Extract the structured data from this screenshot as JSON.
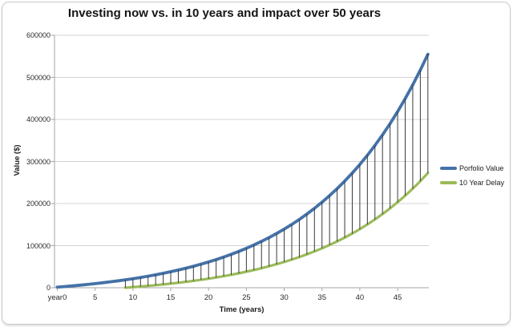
{
  "chart_data": {
    "type": "line",
    "title": "Investing now vs. in 10 years and impact over 50 years",
    "xlabel": "Time (years)",
    "ylabel": "Value ($)",
    "xlim": [
      0,
      49
    ],
    "ylim": [
      0,
      600000
    ],
    "grid": "horizontal",
    "legend_position": "right",
    "x_tick_labels": [
      "year0",
      "5",
      "10",
      "15",
      "20",
      "25",
      "30",
      "35",
      "40",
      "45"
    ],
    "x_tick_years": [
      0,
      5,
      10,
      15,
      20,
      25,
      30,
      35,
      40,
      45
    ],
    "y_ticks": [
      0,
      100000,
      200000,
      300000,
      400000,
      500000,
      600000
    ],
    "y_tick_labels": [
      "0",
      "100000",
      "200000",
      "300000",
      "400000",
      "500000",
      "600000"
    ],
    "series": [
      {
        "name": "Porfolio Value",
        "color": "#4472a8",
        "start_year": 0,
        "values": [
          1400,
          2800,
          4400,
          6100,
          7900,
          9800,
          11800,
          14000,
          16300,
          18900,
          21500,
          24400,
          27500,
          30800,
          34300,
          38100,
          42100,
          46400,
          51000,
          56000,
          61200,
          66900,
          72900,
          79400,
          86300,
          93700,
          101700,
          110200,
          119200,
          128900,
          139300,
          150400,
          162300,
          175100,
          188700,
          203300,
          218900,
          235500,
          253400,
          272500,
          292900,
          314800,
          338200,
          363300,
          390000,
          418700,
          449400,
          482200,
          517300,
          554900
        ]
      },
      {
        "name": "10 Year Delay",
        "color": "#9bbb59",
        "start_year": 9,
        "values": [
          0,
          1400,
          2800,
          4400,
          6100,
          7900,
          9800,
          11800,
          14000,
          16300,
          18900,
          21500,
          24400,
          27500,
          30800,
          34300,
          38100,
          42100,
          46400,
          51000,
          56000,
          61200,
          66900,
          72900,
          79400,
          86300,
          93700,
          101700,
          110200,
          119200,
          128900,
          139300,
          150400,
          162300,
          175100,
          188700,
          203300,
          218900,
          235500,
          253400,
          272500
        ]
      }
    ],
    "drop_lines": {
      "description": "vertical black lines between the two curves at every year, showing the gap caused by delaying",
      "from_year": 9,
      "to_year": 49,
      "color": "#3a3a3a"
    },
    "colors": {
      "gridline": "#d3d3d3",
      "axis": "#a6a6a6",
      "frame_border": "#c9c9c9",
      "title_text": "#151515"
    }
  }
}
